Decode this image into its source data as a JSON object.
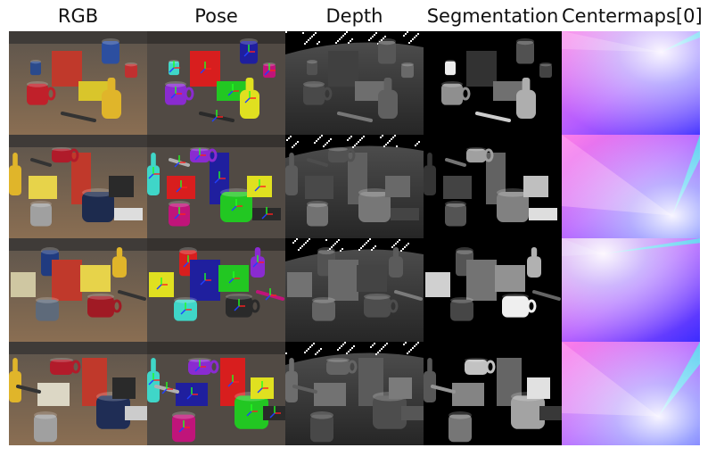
{
  "columns": [
    {
      "key": "rgb",
      "title": "RGB"
    },
    {
      "key": "pose",
      "title": "Pose"
    },
    {
      "key": "depth",
      "title": "Depth"
    },
    {
      "key": "seg",
      "title": "Segmentation"
    },
    {
      "key": "center",
      "title": "Centermaps[0]"
    }
  ],
  "rows": 4,
  "palette": {
    "table": "#6e5a48",
    "background": "#ffffff",
    "title_text": "#111111"
  }
}
